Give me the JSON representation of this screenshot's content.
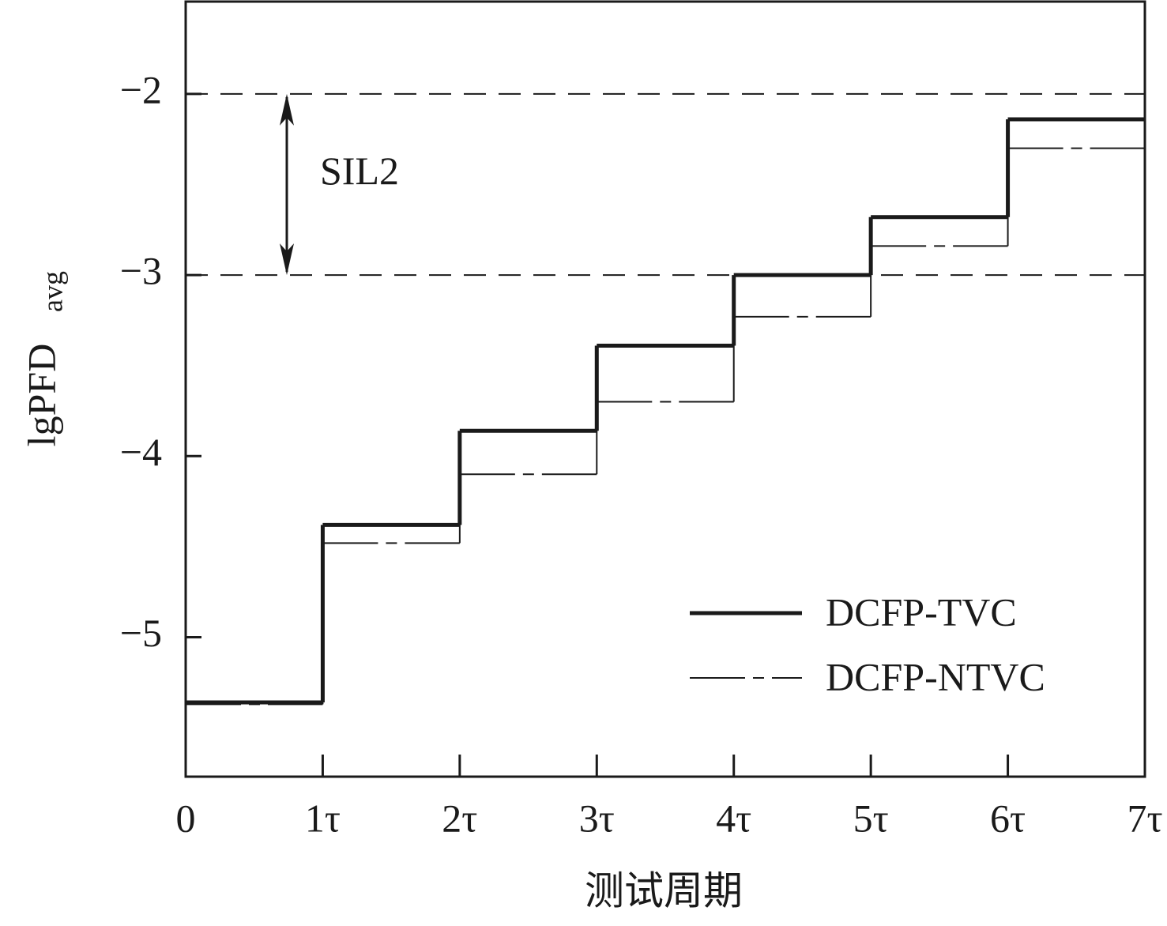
{
  "chart_data": {
    "type": "step",
    "xlabel": "测试周期",
    "ylabel": "lgPFD",
    "ylabel_sub": "avg",
    "annotation": "SIL2",
    "hlines": [
      -2,
      -3
    ],
    "x": [
      0,
      1,
      2,
      3,
      4,
      5,
      6
    ],
    "xlim": [
      0,
      7
    ],
    "xticks": [
      0,
      {
        "value": 1,
        "label": "1τ"
      },
      {
        "value": 2,
        "label": "2τ"
      },
      {
        "value": 3,
        "label": "3τ"
      },
      {
        "value": 4,
        "label": "4τ"
      },
      {
        "value": 5,
        "label": "5τ"
      },
      {
        "value": 6,
        "label": "6τ"
      },
      {
        "value": 7,
        "label": "7τ"
      }
    ],
    "ylim": [
      -5.77,
      -1.49
    ],
    "yticks": [
      {
        "value": -2,
        "label": "−2"
      },
      {
        "value": -3,
        "label": "−3"
      },
      {
        "value": -4,
        "label": "−4"
      },
      {
        "value": -5,
        "label": "−5"
      }
    ],
    "legend": "lower right",
    "series": [
      {
        "name": "DCFP-TVC",
        "color": "#1a1a1a",
        "values": [
          -5.36,
          -4.38,
          -3.86,
          -3.39,
          -3.0,
          -2.68,
          -2.14
        ]
      },
      {
        "name": "DCFP-NTVC",
        "color": "#1a1a1a",
        "values": [
          -5.37,
          -4.48,
          -4.1,
          -3.7,
          -3.23,
          -2.84,
          -2.3
        ]
      }
    ]
  }
}
